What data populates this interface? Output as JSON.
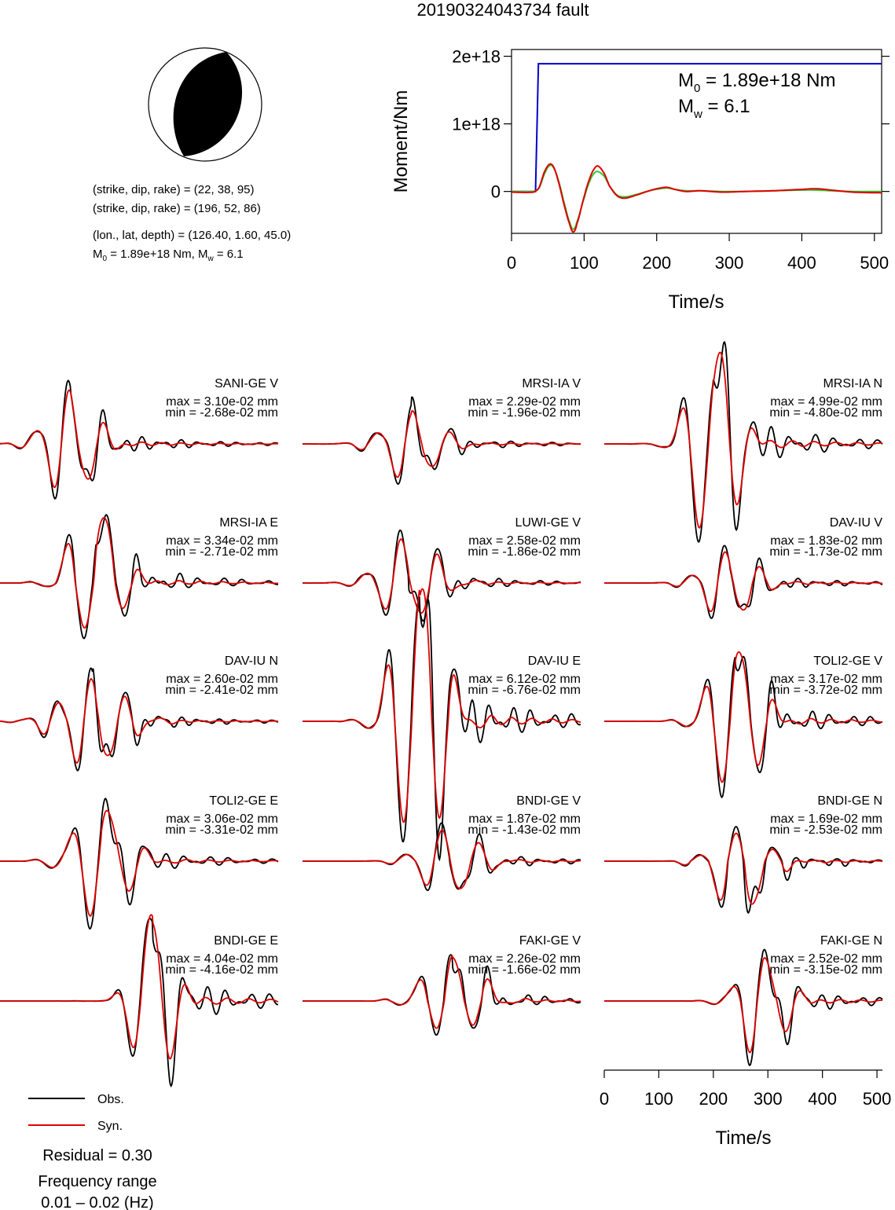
{
  "title": "20190324043734 fault",
  "colors": {
    "obs": "#000000",
    "syn": "#e00000",
    "stf": "#0000cc",
    "stf_syn": "#2ecc2e",
    "beachball_fill": "#000000"
  },
  "source_info": {
    "line1": "(strike, dip, rake) = (22, 38, 95)",
    "line2": "(strike, dip, rake) = (196, 52, 86)",
    "line3": "(lon., lat, depth) = (126.40, 1.60, 45.0)",
    "m0_text": "M",
    "m0_sub": "0",
    "m0_value": " = 1.89e+18 Nm, M",
    "mw_sub": "w",
    "mw_value": " = 6.1"
  },
  "moment_plot": {
    "ylabel": "Moment/Nm",
    "xlabel": "Time/s",
    "annotation_m0": "M",
    "annotation_m0_sub": "0",
    "annotation_m0_value": " = 1.89e+18 Nm",
    "annotation_mw": "M",
    "annotation_mw_sub": "w",
    "annotation_mw_value": " = 6.1"
  },
  "chart_data": [
    {
      "type": "line",
      "name": "moment_rate_function",
      "xlabel": "Time/s",
      "ylabel": "Moment/Nm",
      "xlim": [
        0,
        510
      ],
      "ylim": [
        -6.2e+17,
        2.1e+18
      ],
      "xticks": [
        0,
        100,
        200,
        300,
        400,
        500
      ],
      "xtick_labels": [
        "0",
        "100",
        "200",
        "300",
        "400",
        "500"
      ],
      "yticks": [
        0,
        1e+18,
        2e+18
      ],
      "ytick_labels": [
        "0",
        "1e+18",
        "2e+18"
      ],
      "series": [
        {
          "color": "#0000cc",
          "x": [
            0,
            33,
            35,
            37,
            510
          ],
          "y": [
            0,
            0,
            9e+17,
            1.89e+18,
            1.89e+18
          ]
        },
        {
          "color": "#2ecc2e",
          "x": [
            0,
            30,
            38,
            45,
            52,
            58,
            65,
            72,
            80,
            85,
            90,
            100,
            108,
            115,
            120,
            128,
            135,
            145,
            155,
            170,
            190,
            205,
            215,
            225,
            240,
            260,
            290,
            320,
            360,
            400,
            420,
            440,
            470,
            510
          ],
          "y": [
            0,
            0,
            5e+16,
            2.5e+17,
            3.8e+17,
            3.5e+17,
            1.5e+17,
            -1.5e+17,
            -4.5e+17,
            -5.6e+17,
            -4.5e+17,
            -1e+17,
            1.6e+17,
            2.8e+17,
            2.9e+17,
            2.2e+17,
            8e+16,
            -5e+16,
            -8e+16,
            -5e+16,
            1e+16,
            4e+16,
            5e+16,
            3e+16,
            1e+16,
            1e+16,
            0,
            0,
            1e+16,
            2e+16,
            2e+16,
            1e+16,
            0,
            0
          ]
        },
        {
          "color": "#e00000",
          "x": [
            0,
            30,
            38,
            45,
            52,
            58,
            65,
            72,
            80,
            85,
            90,
            100,
            108,
            115,
            120,
            128,
            135,
            145,
            155,
            170,
            190,
            205,
            215,
            225,
            240,
            260,
            290,
            320,
            360,
            400,
            420,
            440,
            470,
            510
          ],
          "y": [
            -1e+16,
            -1e+16,
            6e+16,
            2.8e+17,
            4e+17,
            3.6e+17,
            1.3e+17,
            -1.8e+17,
            -4.8e+17,
            -6e+17,
            -4.8e+17,
            -8e+16,
            2e+17,
            3.5e+17,
            3.7e+17,
            2.6e+17,
            8e+16,
            -6e+16,
            -1e+17,
            -6e+16,
            1e+16,
            5e+16,
            6e+16,
            3e+16,
            0,
            1e+16,
            -1e+16,
            0,
            1e+16,
            3e+16,
            4e+16,
            2e+16,
            -1e+16,
            -2e+16
          ]
        }
      ]
    },
    {
      "type": "line",
      "name": "waveform_comparison",
      "xlabel": "Time/s",
      "xlim": [
        0,
        510
      ],
      "xticks": [
        0,
        100,
        200,
        300,
        400,
        500
      ],
      "xtick_labels": [
        "0",
        "100",
        "200",
        "300",
        "400",
        "500"
      ],
      "panels": [
        {
          "station": "SANI-GE V",
          "max": "max = 3.10e-02 mm",
          "min": "min = -2.68e-02 mm",
          "vmax": 3.1,
          "vmin": -2.68,
          "t0": 130,
          "f": 0.0158,
          "decay": 60,
          "seed": 1
        },
        {
          "station": "MRSI-IA V",
          "max": "max = 2.29e-02 mm",
          "min": "min = -1.96e-02 mm",
          "vmax": 2.29,
          "vmin": -1.96,
          "t0": 200,
          "f": 0.015,
          "decay": 70,
          "seed": 2
        },
        {
          "station": "MRSI-IA N",
          "max": "max = 4.99e-02 mm",
          "min": "min = -4.80e-02 mm",
          "vmax": 4.99,
          "vmin": -4.8,
          "t0": 200,
          "f": 0.014,
          "decay": 55,
          "seed": 3
        },
        {
          "station": "MRSI-IA E",
          "max": "max = 3.34e-02 mm",
          "min": "min = -2.71e-02 mm",
          "vmax": 3.34,
          "vmin": -2.71,
          "t0": 175,
          "f": 0.014,
          "decay": 60,
          "seed": 4
        },
        {
          "station": "LUWI-GE V",
          "max": "max = 2.58e-02 mm",
          "min": "min = -1.86e-02 mm",
          "vmax": 2.58,
          "vmin": -1.86,
          "t0": 195,
          "f": 0.015,
          "decay": 70,
          "seed": 5
        },
        {
          "station": "DAV-IU V",
          "max": "max = 1.83e-02 mm",
          "min": "min = -1.73e-02 mm",
          "vmax": 1.83,
          "vmin": -1.73,
          "t0": 230,
          "f": 0.016,
          "decay": 65,
          "seed": 6
        },
        {
          "station": "DAV-IU N",
          "max": "max = 2.60e-02 mm",
          "min": "min = -2.41e-02 mm",
          "vmax": 2.6,
          "vmin": -2.41,
          "t0": 170,
          "f": 0.0165,
          "decay": 80,
          "seed": 7
        },
        {
          "station": "DAV-IU E",
          "max": "max = 6.12e-02 mm",
          "min": "min = -6.76e-02 mm",
          "vmax": 6.12,
          "vmin": -6.76,
          "t0": 215,
          "f": 0.015,
          "decay": 60,
          "seed": 8
        },
        {
          "station": "TOLI2-GE V",
          "max": "max = 3.17e-02 mm",
          "min": "min = -3.72e-02 mm",
          "vmax": 3.17,
          "vmin": -3.72,
          "t0": 240,
          "f": 0.015,
          "decay": 60,
          "seed": 9
        },
        {
          "station": "TOLI2-GE E",
          "max": "max = 3.06e-02 mm",
          "min": "min = -3.31e-02 mm",
          "vmax": 3.06,
          "vmin": -3.31,
          "t0": 185,
          "f": 0.014,
          "decay": 65,
          "seed": 10
        },
        {
          "station": "BNDI-GE V",
          "max": "max = 1.87e-02 mm",
          "min": "min = -1.43e-02 mm",
          "vmax": 1.87,
          "vmin": -1.43,
          "t0": 270,
          "f": 0.015,
          "decay": 70,
          "seed": 11
        },
        {
          "station": "BNDI-GE N",
          "max": "max = 1.69e-02 mm",
          "min": "min = -2.53e-02 mm",
          "vmax": 1.69,
          "vmin": -2.53,
          "t0": 250,
          "f": 0.015,
          "decay": 65,
          "seed": 12
        },
        {
          "station": "BNDI-GE E",
          "max": "max = 4.04e-02 mm",
          "min": "min = -4.16e-02 mm",
          "vmax": 4.04,
          "vmin": -4.16,
          "t0": 280,
          "f": 0.014,
          "decay": 45,
          "seed": 13
        },
        {
          "station": "FAKI-GE V",
          "max": "max = 2.26e-02 mm",
          "min": "min = -1.66e-02 mm",
          "vmax": 2.26,
          "vmin": -1.66,
          "t0": 275,
          "f": 0.015,
          "decay": 70,
          "seed": 14
        },
        {
          "station": "FAKI-GE N",
          "max": "max = 2.52e-02 mm",
          "min": "min = -3.15e-02 mm",
          "vmax": 2.52,
          "vmin": -3.15,
          "t0": 290,
          "f": 0.015,
          "decay": 55,
          "seed": 15
        }
      ]
    }
  ],
  "legend": {
    "obs": "Obs.",
    "syn": "Syn."
  },
  "residual": "Residual = 0.30",
  "freq_title": "Frequency range",
  "freq_value": "0.01 – 0.02 (Hz)"
}
